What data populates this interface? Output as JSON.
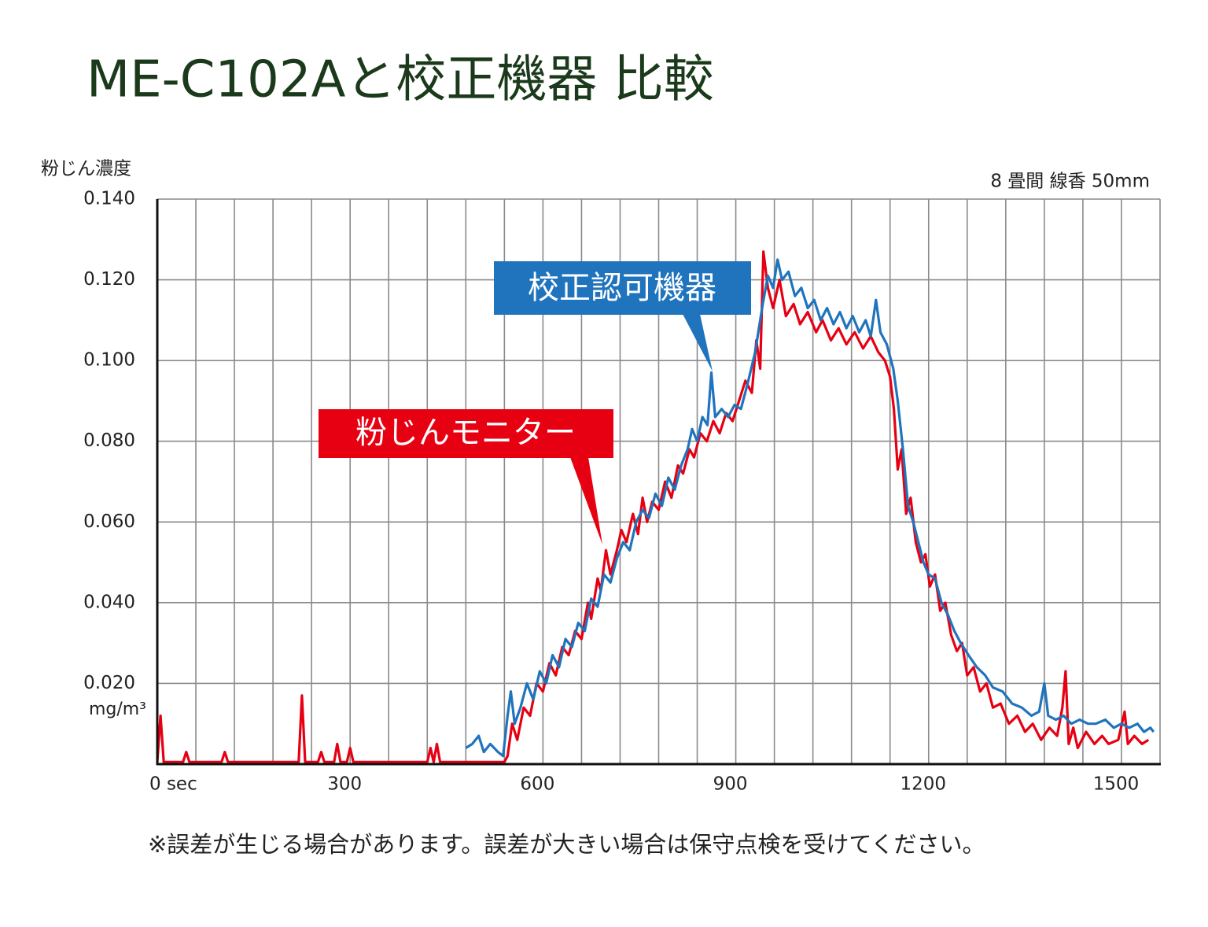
{
  "chart_data": {
    "type": "line",
    "title": "ME-C102Aと校正機器 比較",
    "y_axis_label": "粉じん濃度",
    "y_unit": "mg/m³",
    "condition": "8 畳間 線香 50mm",
    "footnote": "※誤差が生じる場合があります。誤差が大きい場合は保守点検を受けてください。",
    "xlim": [
      0,
      1560
    ],
    "xticks": [
      {
        "value": 0,
        "label": "0 sec"
      },
      300,
      600,
      900,
      1200,
      1500
    ],
    "xgrid": [
      0,
      60,
      120,
      180,
      240,
      300,
      360,
      420,
      480,
      540,
      600,
      660,
      720,
      780,
      840,
      900,
      960,
      1020,
      1080,
      1140,
      1200,
      1260,
      1320,
      1380,
      1440,
      1500,
      1560
    ],
    "ylim": [
      0,
      0.14
    ],
    "yticks": [
      {
        "value": 0.02,
        "label": "0.020"
      },
      {
        "value": 0.04,
        "label": "0.040"
      },
      {
        "value": 0.06,
        "label": "0.060"
      },
      {
        "value": 0.08,
        "label": "0.080"
      },
      {
        "value": 0.1,
        "label": "0.100"
      },
      {
        "value": 0.12,
        "label": "0.120"
      },
      {
        "value": 0.14,
        "label": "0.140"
      }
    ],
    "grid": true,
    "series": [
      {
        "name": "粉じんモニター",
        "color": "#e60012",
        "x": [
          0,
          5,
          10,
          40,
          45,
          50,
          100,
          105,
          110,
          220,
          225,
          230,
          250,
          255,
          260,
          275,
          280,
          285,
          295,
          300,
          305,
          420,
          425,
          430,
          435,
          440,
          540,
          545,
          552,
          560,
          570,
          580,
          590,
          600,
          610,
          620,
          630,
          640,
          650,
          660,
          670,
          675,
          685,
          690,
          698,
          705,
          715,
          722,
          730,
          740,
          748,
          755,
          762,
          770,
          780,
          790,
          800,
          810,
          818,
          828,
          835,
          845,
          855,
          865,
          875,
          885,
          895,
          905,
          915,
          925,
          932,
          938,
          943,
          950,
          958,
          968,
          978,
          990,
          1000,
          1012,
          1025,
          1035,
          1048,
          1060,
          1072,
          1085,
          1098,
          1110,
          1122,
          1132,
          1140,
          1146,
          1152,
          1158,
          1165,
          1172,
          1180,
          1188,
          1195,
          1202,
          1210,
          1218,
          1226,
          1235,
          1244,
          1252,
          1260,
          1270,
          1280,
          1290,
          1300,
          1312,
          1325,
          1338,
          1350,
          1362,
          1375,
          1388,
          1400,
          1408,
          1413,
          1418,
          1425,
          1432,
          1445,
          1458,
          1470,
          1480,
          1495,
          1505,
          1510,
          1520,
          1532,
          1542
        ],
        "values": [
          0.0005,
          0.012,
          0.0005,
          0.0005,
          0.003,
          0.0005,
          0.0005,
          0.003,
          0.0005,
          0.0005,
          0.017,
          0.0005,
          0.0005,
          0.003,
          0.0005,
          0.0005,
          0.005,
          0.0005,
          0.0005,
          0.004,
          0.0005,
          0.0005,
          0.004,
          0.0005,
          0.005,
          0.0005,
          0.0005,
          0.002,
          0.01,
          0.006,
          0.014,
          0.012,
          0.02,
          0.018,
          0.025,
          0.022,
          0.029,
          0.027,
          0.033,
          0.031,
          0.04,
          0.036,
          0.046,
          0.043,
          0.053,
          0.047,
          0.053,
          0.058,
          0.055,
          0.062,
          0.057,
          0.066,
          0.06,
          0.065,
          0.063,
          0.07,
          0.066,
          0.074,
          0.072,
          0.078,
          0.076,
          0.082,
          0.08,
          0.085,
          0.082,
          0.087,
          0.085,
          0.09,
          0.095,
          0.092,
          0.105,
          0.098,
          0.127,
          0.118,
          0.113,
          0.12,
          0.111,
          0.114,
          0.109,
          0.112,
          0.107,
          0.11,
          0.105,
          0.108,
          0.104,
          0.107,
          0.103,
          0.106,
          0.102,
          0.1,
          0.096,
          0.088,
          0.073,
          0.078,
          0.062,
          0.066,
          0.055,
          0.05,
          0.052,
          0.044,
          0.047,
          0.038,
          0.04,
          0.032,
          0.028,
          0.03,
          0.022,
          0.024,
          0.018,
          0.02,
          0.014,
          0.015,
          0.01,
          0.012,
          0.008,
          0.01,
          0.006,
          0.009,
          0.007,
          0.014,
          0.023,
          0.005,
          0.009,
          0.004,
          0.008,
          0.005,
          0.007,
          0.005,
          0.006,
          0.013,
          0.005,
          0.007,
          0.005,
          0.006
        ]
      },
      {
        "name": "校正認可機器",
        "color": "#1f74bd",
        "x": [
          480,
          490,
          500,
          508,
          518,
          530,
          538,
          545,
          550,
          556,
          565,
          575,
          585,
          595,
          605,
          615,
          625,
          635,
          645,
          655,
          665,
          675,
          685,
          695,
          705,
          715,
          725,
          735,
          745,
          755,
          765,
          775,
          785,
          795,
          805,
          815,
          825,
          832,
          840,
          848,
          856,
          862,
          868,
          878,
          888,
          898,
          908,
          918,
          930,
          942,
          950,
          958,
          965,
          972,
          982,
          992,
          1002,
          1012,
          1022,
          1032,
          1042,
          1052,
          1062,
          1072,
          1082,
          1092,
          1102,
          1110,
          1118,
          1125,
          1135,
          1145,
          1152,
          1160,
          1168,
          1176,
          1184,
          1192,
          1200,
          1210,
          1220,
          1230,
          1240,
          1250,
          1262,
          1275,
          1288,
          1300,
          1315,
          1330,
          1345,
          1360,
          1372,
          1380,
          1386,
          1398,
          1410,
          1422,
          1435,
          1448,
          1460,
          1475,
          1488,
          1500,
          1512,
          1525,
          1535,
          1545,
          1550
        ],
        "values": [
          0.004,
          0.005,
          0.007,
          0.003,
          0.005,
          0.003,
          0.002,
          0.012,
          0.018,
          0.01,
          0.014,
          0.02,
          0.016,
          0.023,
          0.02,
          0.027,
          0.024,
          0.031,
          0.029,
          0.035,
          0.033,
          0.041,
          0.039,
          0.047,
          0.045,
          0.051,
          0.055,
          0.053,
          0.06,
          0.063,
          0.061,
          0.067,
          0.064,
          0.071,
          0.068,
          0.074,
          0.078,
          0.083,
          0.08,
          0.086,
          0.084,
          0.097,
          0.086,
          0.088,
          0.086,
          0.089,
          0.088,
          0.094,
          0.102,
          0.114,
          0.121,
          0.118,
          0.125,
          0.12,
          0.122,
          0.116,
          0.118,
          0.113,
          0.115,
          0.11,
          0.113,
          0.109,
          0.112,
          0.108,
          0.111,
          0.107,
          0.11,
          0.106,
          0.115,
          0.107,
          0.104,
          0.098,
          0.09,
          0.078,
          0.064,
          0.06,
          0.055,
          0.05,
          0.047,
          0.046,
          0.04,
          0.037,
          0.033,
          0.03,
          0.027,
          0.024,
          0.022,
          0.019,
          0.018,
          0.015,
          0.014,
          0.012,
          0.013,
          0.02,
          0.012,
          0.011,
          0.012,
          0.01,
          0.011,
          0.01,
          0.01,
          0.011,
          0.009,
          0.01,
          0.009,
          0.01,
          0.008,
          0.009,
          0.008
        ]
      }
    ]
  }
}
